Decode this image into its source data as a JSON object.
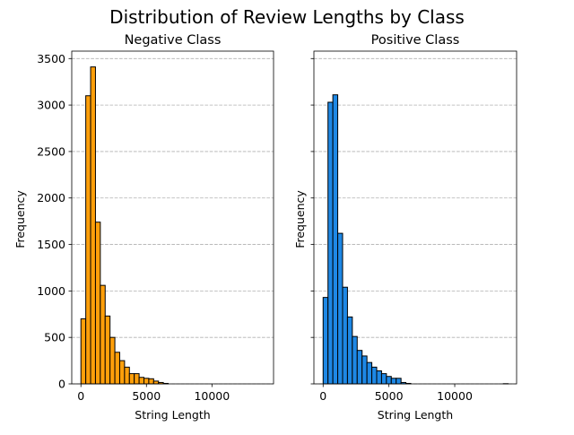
{
  "chart_data": {
    "type": "bar",
    "title": "Distribution of Review Lengths by Class",
    "bin_width": 370,
    "bin_start": 0,
    "xlim": [
      -700,
      14700
    ],
    "ylim": [
      0,
      3580
    ],
    "xticks": [
      0,
      5000,
      10000
    ],
    "yticks": [
      0,
      500,
      1000,
      1500,
      2000,
      2500,
      3000,
      3500
    ],
    "grid": "y-dashed",
    "panels": [
      {
        "title": "Negative Class",
        "xlabel": "String Length",
        "ylabel": "Frequency",
        "color": "#ff9f0a",
        "values": [
          700,
          3100,
          3410,
          1740,
          1060,
          730,
          500,
          340,
          250,
          180,
          110,
          110,
          70,
          60,
          55,
          30,
          15,
          5,
          0,
          0,
          0,
          0,
          0,
          0,
          0,
          0,
          0,
          0,
          0,
          0,
          0,
          0,
          0,
          0,
          0,
          0,
          0,
          0
        ]
      },
      {
        "title": "Positive Class",
        "xlabel": "String Length",
        "ylabel": "Frequency",
        "color": "#1e88e5",
        "values": [
          930,
          3030,
          3110,
          1620,
          1040,
          720,
          510,
          360,
          300,
          230,
          180,
          140,
          110,
          80,
          60,
          60,
          15,
          5,
          0,
          0,
          0,
          0,
          0,
          0,
          0,
          0,
          0,
          0,
          0,
          0,
          0,
          0,
          0,
          0,
          0,
          0,
          0,
          2
        ]
      }
    ]
  }
}
